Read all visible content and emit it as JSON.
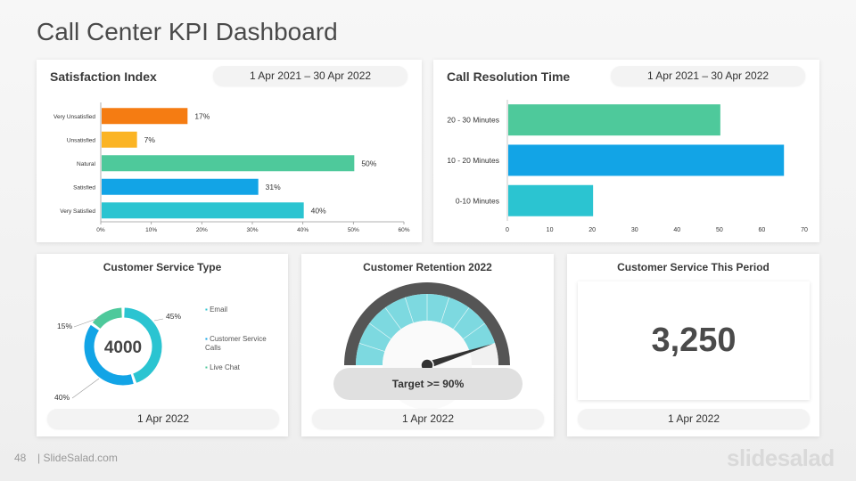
{
  "page_title": "Call Center KPI Dashboard",
  "footer": {
    "slide_number": "48",
    "site": "| SlideSalad.com",
    "brand": "slidesalad"
  },
  "panels": {
    "satisfaction": {
      "title": "Satisfaction Index",
      "date": "1 Apr 2021 – 30 Apr 2022"
    },
    "resolution": {
      "title": "Call Resolution Time",
      "date": "1 Apr 2021 – 30 Apr 2022"
    },
    "service_type": {
      "title": "Customer Service Type",
      "date": "1 Apr 2022"
    },
    "retention": {
      "title": "Customer Retention 2022",
      "date": "1 Apr 2022",
      "target_label": "Target >= 90%"
    },
    "period": {
      "title": "Customer Service This Period",
      "date": "1 Apr 2022",
      "value": "3,250"
    }
  },
  "chart_data": [
    {
      "type": "bar",
      "orientation": "horizontal",
      "categories": [
        "Very Unsatisfied",
        "Unsatisfied",
        "Natural",
        "Satisfied",
        "Very Satisfied"
      ],
      "values": [
        17,
        7,
        50,
        31,
        40
      ],
      "data_labels": [
        "17%",
        "7%",
        "50%",
        "31%",
        "40%"
      ],
      "colors": [
        "#f57c12",
        "#fbb424",
        "#4ec99b",
        "#12a4e6",
        "#2bc4d1"
      ],
      "xlim": [
        0,
        60
      ],
      "xticks": [
        "0%",
        "10%",
        "20%",
        "30%",
        "40%",
        "50%",
        "60%"
      ]
    },
    {
      "type": "bar",
      "orientation": "horizontal",
      "categories": [
        "20 - 30 Minutes",
        "10 - 20 Minutes",
        "0-10 Minutes"
      ],
      "values": [
        50,
        65,
        20
      ],
      "colors": [
        "#4ec99b",
        "#12a4e6",
        "#2bc4d1"
      ],
      "xlim": [
        0,
        70
      ],
      "xticks": [
        "0",
        "10",
        "20",
        "30",
        "40",
        "50",
        "60",
        "70"
      ]
    },
    {
      "type": "pie",
      "variant": "donut",
      "center_label": "4000",
      "labels": [
        "Email",
        "Customer Service Calls",
        "Live Chat"
      ],
      "values": [
        45,
        40,
        15
      ],
      "data_labels": [
        "45%",
        "40%",
        "15%"
      ],
      "colors": [
        "#2bc4d1",
        "#12a4e6",
        "#4ec99b"
      ]
    },
    {
      "type": "gauge",
      "value_fraction": 0.9,
      "colors": {
        "ring": "#555555",
        "fill": "#7dd9e0",
        "needle": "#333333"
      }
    }
  ]
}
